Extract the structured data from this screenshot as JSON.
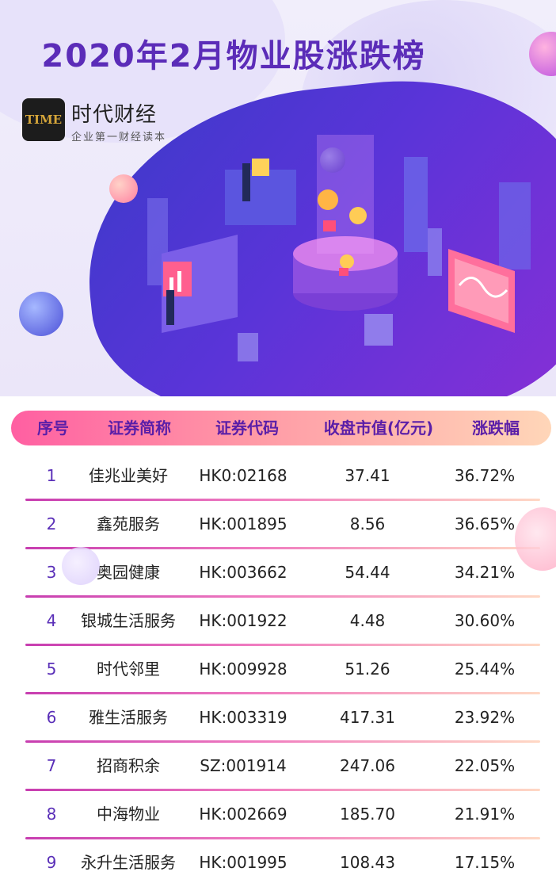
{
  "header": {
    "title": "2020年2月物业股涨跌榜",
    "logo_text": "TIME",
    "brand_name": "时代财经",
    "brand_slogan": "企业第一财经读本"
  },
  "colors": {
    "title": "#5b2cb8",
    "header_gradient_start": "#ff5fa2",
    "header_gradient_end": "#ffd6b8",
    "rule_start": "#c73db0",
    "rule_end": "#ffd8c4"
  },
  "table": {
    "columns": [
      "序号",
      "证券简称",
      "证券代码",
      "收盘市值(亿元)",
      "涨跌幅"
    ],
    "rows": [
      [
        "1",
        "佳兆业美好",
        "HK0:02168",
        "37.41",
        "36.72%"
      ],
      [
        "2",
        "鑫苑服务",
        "HK:001895",
        "8.56",
        "36.65%"
      ],
      [
        "3",
        "奥园健康",
        "HK:003662",
        "54.44",
        "34.21%"
      ],
      [
        "4",
        "银城生活服务",
        "HK:001922",
        "4.48",
        "30.60%"
      ],
      [
        "5",
        "时代邻里",
        "HK:009928",
        "51.26",
        "25.44%"
      ],
      [
        "6",
        "雅生活服务",
        "HK:003319",
        "417.31",
        "23.92%"
      ],
      [
        "7",
        "招商积余",
        "SZ:001914",
        "247.06",
        "22.05%"
      ],
      [
        "8",
        "中海物业",
        "HK:002669",
        "185.70",
        "21.91%"
      ],
      [
        "9",
        "永升生活服务",
        "HK:001995",
        "108.43",
        "17.15%"
      ]
    ]
  }
}
